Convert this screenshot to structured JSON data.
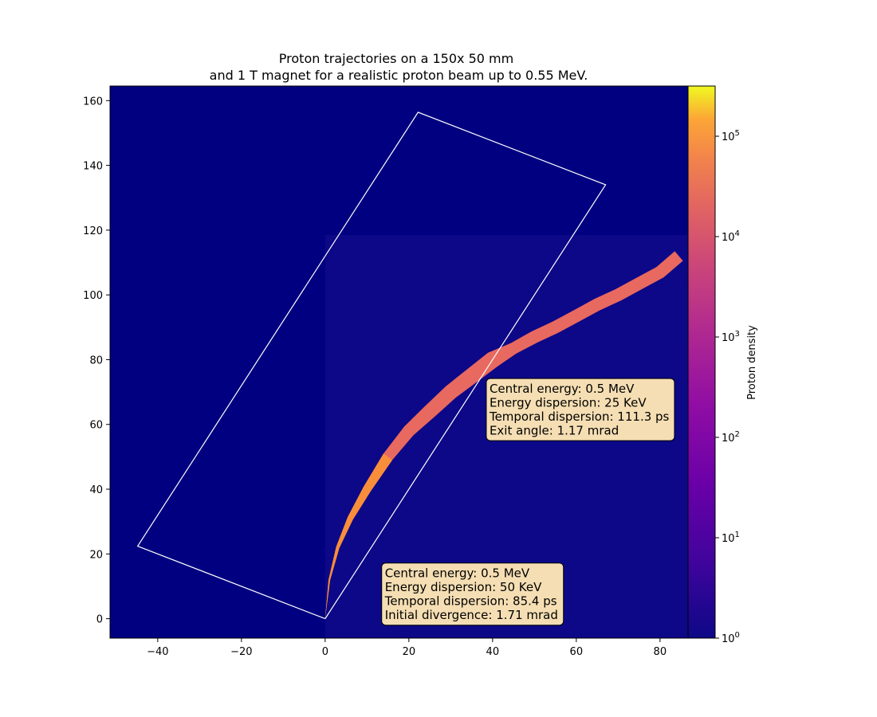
{
  "chart_data": {
    "type": "heatmap",
    "title_lines": [
      "Proton trajectories on a 150x 50 mm",
      "and 1 T magnet for a realistic proton beam up to 0.55 MeV."
    ],
    "xlim": [
      -51.4,
      86.7
    ],
    "ylim": [
      -6,
      164.5
    ],
    "x_ticks": [
      -40,
      -20,
      0,
      20,
      40,
      60,
      80
    ],
    "y_ticks": [
      0,
      20,
      40,
      60,
      80,
      100,
      120,
      140,
      160
    ],
    "x_tick_labels": [
      "−40",
      "−20",
      "0",
      "20",
      "40",
      "60",
      "80"
    ],
    "y_tick_labels": [
      "0",
      "20",
      "40",
      "60",
      "80",
      "100",
      "120",
      "140",
      "160"
    ],
    "background_color": "#000080",
    "histogram_region": {
      "x": [
        0,
        86.7
      ],
      "y": [
        -6,
        118.5
      ],
      "color": "#0d0887"
    },
    "magnet_outline": [
      [
        0,
        0
      ],
      [
        -44.8,
        22.4
      ],
      [
        22.2,
        156.4
      ],
      [
        67.0,
        134.0
      ],
      [
        0,
        0
      ]
    ],
    "beam_center": [
      [
        0,
        0
      ],
      [
        1,
        12
      ],
      [
        3,
        22
      ],
      [
        6,
        31
      ],
      [
        10,
        40
      ],
      [
        15,
        50
      ],
      [
        20,
        58
      ],
      [
        25,
        64
      ],
      [
        30,
        70
      ],
      [
        35,
        75
      ],
      [
        40,
        80
      ],
      [
        45,
        83.5
      ],
      [
        50,
        87
      ],
      [
        55,
        90
      ],
      [
        60,
        93.5
      ],
      [
        65,
        97
      ],
      [
        70,
        100
      ],
      [
        75,
        103.5
      ],
      [
        80,
        107
      ],
      [
        84.5,
        112
      ]
    ],
    "beam_half_width": [
      0,
      0.2,
      0.4,
      0.7,
      1.0,
      1.3,
      1.5,
      1.7,
      1.8,
      1.9,
      2.0,
      1.4,
      1.5,
      1.5,
      1.5,
      1.5,
      1.5,
      1.5,
      1.5,
      1.5
    ],
    "beam_color": "#e8695f",
    "beam_color_low": "#f98e3a",
    "annotations": [
      {
        "lines": [
          "Central energy: 0.5 MeV",
          "Energy dispersion: 25 KeV",
          "Temporal dispersion: 111.3 ps",
          "Exit angle: 1.17 mrad"
        ],
        "anchor": [
          38.5,
          55
        ]
      },
      {
        "lines": [
          "Central energy: 0.5 MeV",
          "Energy dispersion: 50 KeV",
          "Temporal dispersion: 85.4 ps",
          "Initial divergence: 1.71 mrad"
        ],
        "anchor": [
          13.5,
          -2
        ]
      }
    ],
    "annotation_fill": "#f5deb3",
    "colorbar": {
      "label": "Proton density",
      "scale": "log",
      "colormap": "plasma",
      "range_exponent": [
        0,
        5.5
      ],
      "tick_exponents": [
        0,
        1,
        2,
        3,
        4,
        5
      ],
      "tick_labels": [
        "10",
        "10",
        "10",
        "10",
        "10",
        "10"
      ],
      "tick_superscripts": [
        "0",
        "1",
        "2",
        "3",
        "4",
        "5"
      ]
    }
  }
}
